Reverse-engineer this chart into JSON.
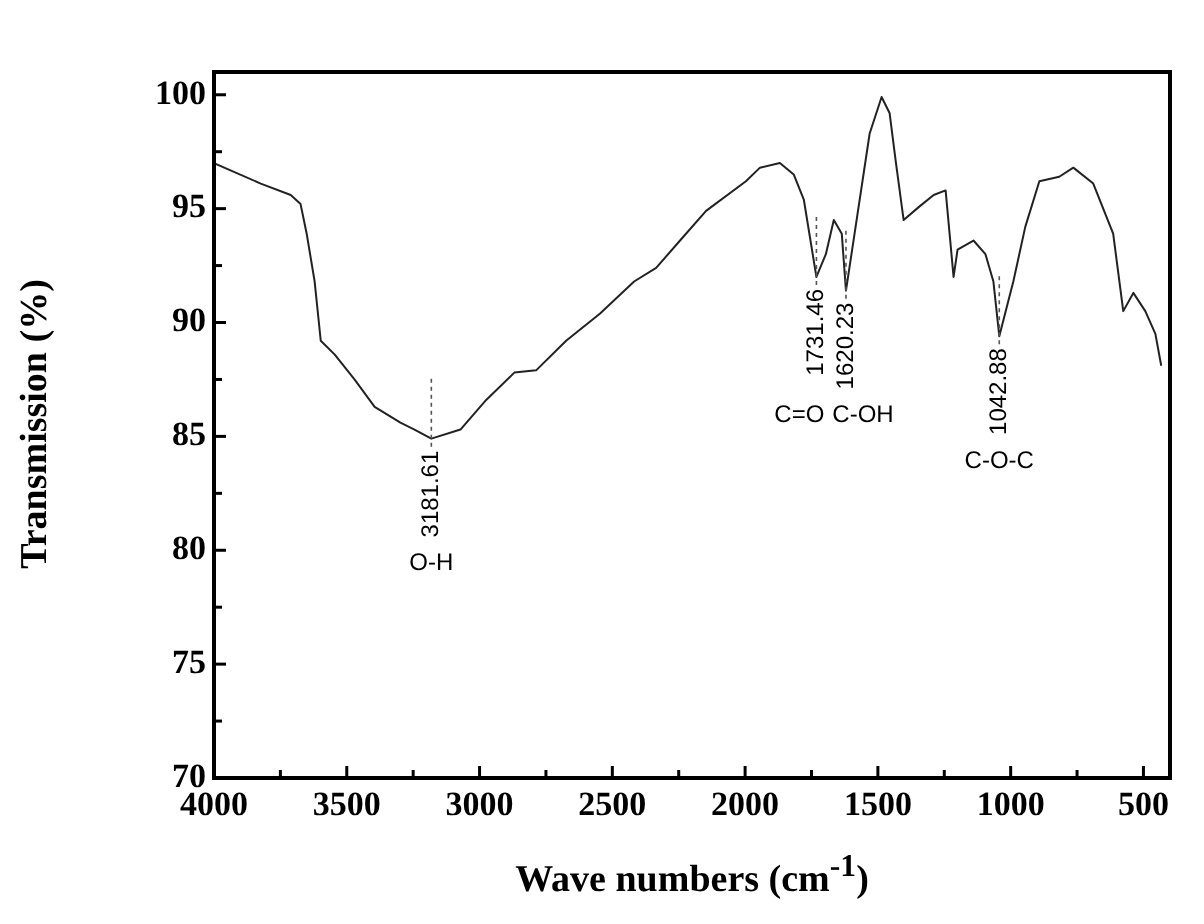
{
  "chart_data": {
    "type": "line",
    "xlabel": "Wave numbers (cm$^{-1}$)",
    "ylabel": "Transmission (%)",
    "xlim": [
      4000,
      400
    ],
    "ylim": [
      70,
      101
    ],
    "xticks": [
      4000,
      {
        "value": 3750,
        "label": null
      },
      3500,
      {
        "value": 3250,
        "label": null
      },
      3000,
      {
        "value": 2750,
        "label": null
      },
      2500,
      {
        "value": 2250,
        "label": null
      },
      2000,
      {
        "value": 1750,
        "label": null
      },
      1500,
      {
        "value": 1250,
        "label": null
      },
      1000,
      {
        "value": 750,
        "label": null
      },
      500
    ],
    "yticks": [
      70,
      {
        "value": 72.5,
        "label": null
      },
      75,
      {
        "value": 77.5,
        "label": null
      },
      80,
      {
        "value": 82.5,
        "label": null
      },
      85,
      {
        "value": 87.5,
        "label": null
      },
      90,
      {
        "value": 92.5,
        "label": null
      },
      95,
      {
        "value": 97.5,
        "label": null
      },
      100
    ],
    "grid": false,
    "legend": false,
    "marker": "none",
    "line_style": "solid",
    "series": [
      {
        "color": "#222222",
        "x": [
          4000,
          3824,
          3711,
          3674,
          3651,
          3621,
          3598,
          3546,
          3471,
          3395,
          3298,
          3245,
          3181.61,
          3072,
          2975,
          2869,
          2787,
          2674,
          2546,
          2418,
          2335,
          2245,
          2147,
          1997,
          1944,
          1869,
          1817,
          1779,
          1731.46,
          1696,
          1666,
          1636,
          1620.23,
          1584,
          1531,
          1486,
          1456,
          1433,
          1403,
          1343,
          1290,
          1245,
          1230,
          1215,
          1200,
          1140,
          1095,
          1065,
          1042.88,
          990,
          945,
          892,
          817,
          764,
          689,
          614,
          576,
          538,
          493,
          455,
          433
        ],
        "values": [
          97,
          96.1,
          95.6,
          95.2,
          93.9,
          91.8,
          89.2,
          88.6,
          87.5,
          86.3,
          85.6,
          85.3,
          84.9,
          85.3,
          86.6,
          87.8,
          87.9,
          89.2,
          90.4,
          91.8,
          92.4,
          93.6,
          94.9,
          96.2,
          96.8,
          97,
          96.5,
          95.4,
          92,
          93,
          94.5,
          93.9,
          91.4,
          94.2,
          98.3,
          99.9,
          99.2,
          97.1,
          94.5,
          95.1,
          95.6,
          95.8,
          93.9,
          92,
          93.2,
          93.6,
          93,
          91.8,
          89.4,
          91.8,
          94.2,
          96.2,
          96.4,
          96.8,
          96.1,
          93.9,
          90.5,
          91.3,
          90.5,
          89.5,
          88.1
        ]
      }
    ],
    "annotations": [
      {
        "text": "3181.61",
        "x": 3181.61,
        "y": 84.9
      },
      "O-H",
      {
        "text": "1731.46",
        "x": 1731.46,
        "y": 92
      },
      "C=O",
      {
        "text": "1620.23",
        "x": 1620.23,
        "y": 91.4
      },
      "C-OH",
      {
        "text": "1042.88",
        "x": 1042.88,
        "y": 89.4
      },
      "C-O-C"
    ]
  }
}
